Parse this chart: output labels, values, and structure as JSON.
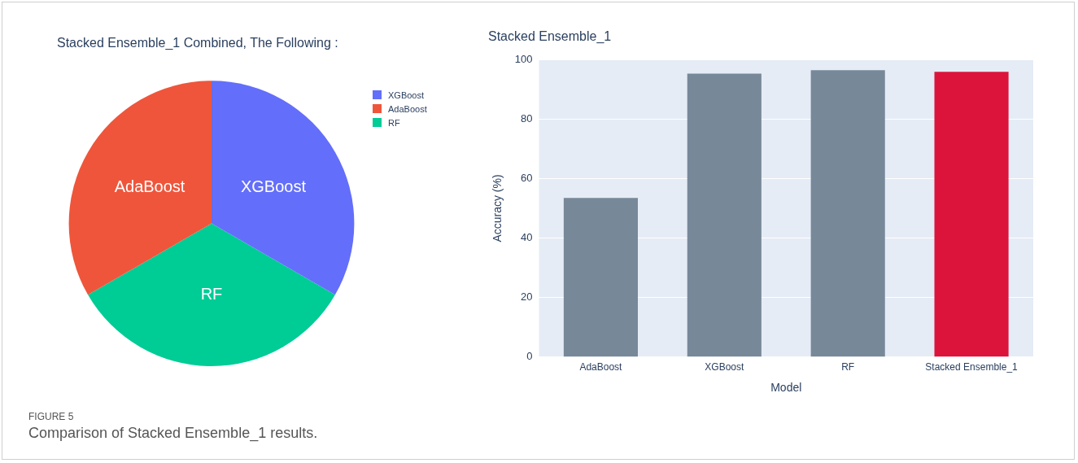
{
  "chart_data": [
    {
      "type": "pie",
      "title": "Stacked Ensemble_1 Combined, The Following :",
      "categories": [
        "XGBoost",
        "AdaBoost",
        "RF"
      ],
      "values": [
        33.33,
        33.33,
        33.34
      ],
      "colors": [
        "#636efa",
        "#ef553b",
        "#00cc96"
      ],
      "legend": "top right",
      "annotations": [
        "FIGURE 5",
        "Comparison of Stacked Ensemble_1 results."
      ]
    },
    {
      "type": "bar",
      "title": "Stacked Ensemble_1",
      "xlabel": "Model",
      "ylabel": "Accuracy (%)",
      "categories": [
        "AdaBoost",
        "XGBoost",
        "RF",
        "Stacked Ensemble_1"
      ],
      "values": [
        53.5,
        95.3,
        96.4,
        95.9
      ],
      "colors": [
        "#778899",
        "#778899",
        "#778899",
        "#dc143c"
      ],
      "ylim": [
        0,
        100
      ],
      "yticks": [
        0,
        20,
        40,
        60,
        80,
        100
      ],
      "grid": "y",
      "legend": false
    }
  ]
}
